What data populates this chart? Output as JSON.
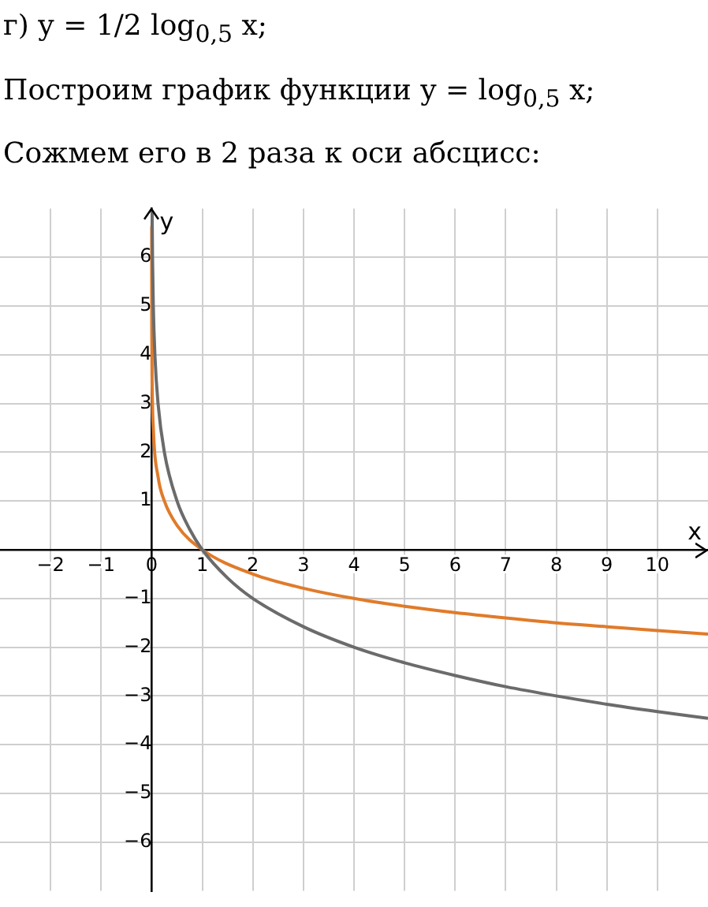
{
  "chart_data": {
    "type": "line",
    "title": "г) y = 1/2 log$_{0,5}$ x;",
    "subtitle": "Построим график функции y = log$_{0,5}$ x;",
    "annotations": [
      "Сожмем его в 2 раза к оси абсцисс:"
    ],
    "xlabel": "x",
    "ylabel": "y",
    "xlim": [
      -3,
      11
    ],
    "ylim": [
      -7,
      7
    ],
    "xticks": [
      -2,
      -1,
      0,
      1,
      2,
      3,
      4,
      5,
      6,
      7,
      8,
      9,
      10
    ],
    "yticks": [
      -6,
      -5,
      -4,
      -3,
      -2,
      -1,
      1,
      2,
      3,
      4,
      5,
      6
    ],
    "grid": true,
    "legend": false,
    "marker": "none",
    "line_style": "solid",
    "series": [
      {
        "color": "#6b6b6b",
        "x": [
          0.008,
          0.016,
          0.031,
          0.0625,
          0.125,
          0.25,
          0.5,
          0.75,
          1,
          1.5,
          2,
          3,
          4,
          5,
          6,
          7,
          8,
          9,
          10,
          11
        ],
        "values": [
          6.97,
          5.97,
          5.01,
          4,
          3,
          2,
          1,
          0.42,
          0,
          -0.58,
          -1,
          -1.58,
          -2,
          -2.32,
          -2.58,
          -2.81,
          -3,
          -3.17,
          -3.32,
          -3.46
        ]
      },
      {
        "color": "#e07b2a",
        "x": [
          0.0001,
          0.0005,
          0.002,
          0.008,
          0.031,
          0.125,
          0.25,
          0.5,
          1,
          2,
          3,
          4,
          5,
          6,
          7,
          8,
          9,
          10,
          11
        ],
        "values": [
          6.64,
          5.48,
          4.48,
          3.48,
          2.5,
          1.5,
          1,
          0.5,
          0,
          -0.5,
          -0.79,
          -1,
          -1.16,
          -1.29,
          -1.4,
          -1.5,
          -1.58,
          -1.66,
          -1.73
        ]
      }
    ]
  }
}
